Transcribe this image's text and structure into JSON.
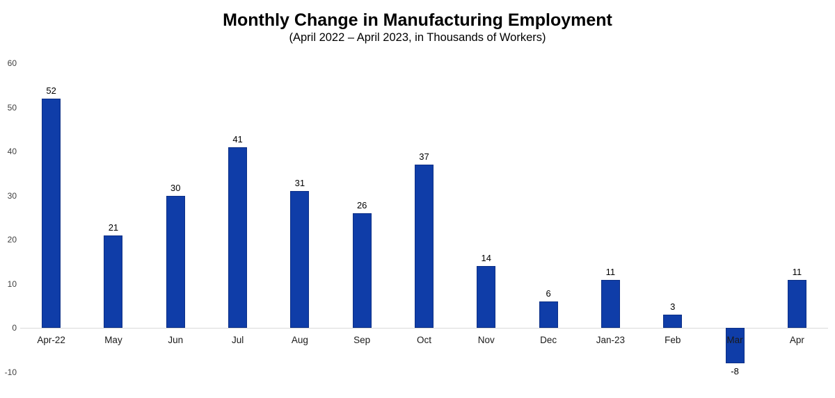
{
  "chart_data": {
    "type": "bar",
    "title": "Monthly Change in Manufacturing Employment",
    "subtitle": "(April 2022 – April 2023, in Thousands of Workers)",
    "categories": [
      "Apr-22",
      "May",
      "Jun",
      "Jul",
      "Aug",
      "Sep",
      "Oct",
      "Nov",
      "Dec",
      "Jan-23",
      "Feb",
      "Mar",
      "Apr"
    ],
    "values": [
      52,
      21,
      30,
      41,
      31,
      26,
      37,
      14,
      6,
      11,
      3,
      -8,
      11
    ],
    "xlabel": "",
    "ylabel": "",
    "ylim": [
      -10,
      60
    ],
    "yticks": [
      60,
      50,
      40,
      30,
      20,
      10,
      0,
      -10
    ],
    "grid": "none",
    "legend": "none",
    "data_labels": true,
    "bar_color": "#0f3da8",
    "bar_border_color": "#0c2f86",
    "axis_line_color": "#d9d9d9",
    "tick_label_color": "#404040",
    "value_label_color": "#000000",
    "category_label_color": "#1a1a1a"
  }
}
